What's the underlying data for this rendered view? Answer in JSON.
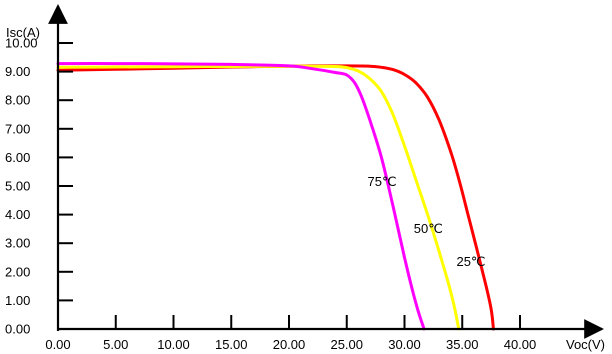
{
  "chart_data": {
    "type": "line",
    "xlabel": "Voc(V)",
    "ylabel": "Isc(A)",
    "xlim": [
      0,
      45
    ],
    "ylim": [
      0,
      10.5
    ],
    "x_ticks": [
      0,
      5,
      10,
      15,
      20,
      25,
      30,
      35,
      40
    ],
    "x_tick_labels": [
      "0.00",
      "5.00",
      "10.00",
      "15.00",
      "20.00",
      "25.00",
      "30.00",
      "35.00",
      "40.00"
    ],
    "y_ticks": [
      0,
      1,
      2,
      3,
      4,
      5,
      6,
      7,
      8,
      9,
      10
    ],
    "y_tick_labels": [
      "0.00",
      "1.00",
      "2.00",
      "3.00",
      "4.00",
      "5.00",
      "6.00",
      "7.00",
      "8.00",
      "9.00",
      "10.00"
    ],
    "grid": false,
    "legend": "none",
    "series": [
      {
        "name": "25℃",
        "color": "#ff0000",
        "x": [
          0,
          5,
          10,
          15,
          20,
          22,
          25,
          27,
          28,
          29,
          30,
          31,
          32,
          33,
          34,
          34.8,
          35.5,
          36.2,
          37,
          37.5,
          37.7
        ],
        "y": [
          9.05,
          9.08,
          9.12,
          9.16,
          9.19,
          9.2,
          9.2,
          9.19,
          9.15,
          9.07,
          8.9,
          8.6,
          8.1,
          7.3,
          6.2,
          5.1,
          4.0,
          2.9,
          1.6,
          0.7,
          0
        ]
      },
      {
        "name": "50℃",
        "color": "#ffff00",
        "x": [
          0,
          5,
          10,
          15,
          20,
          22,
          24,
          25,
          26,
          27,
          28,
          29,
          30,
          31,
          32,
          33,
          33.8,
          34.3,
          34.7
        ],
        "y": [
          9.15,
          9.16,
          9.17,
          9.18,
          9.19,
          9.19,
          9.18,
          9.14,
          9.02,
          8.75,
          8.3,
          7.5,
          6.4,
          5.2,
          4.0,
          2.7,
          1.6,
          0.8,
          0
        ]
      },
      {
        "name": "75℃",
        "color": "#ff00ff",
        "x": [
          0,
          5,
          10,
          15,
          20,
          22,
          24,
          25,
          25.7,
          26.3,
          27,
          28,
          29,
          30,
          30.6,
          31.2,
          31.7
        ],
        "y": [
          9.28,
          9.28,
          9.27,
          9.25,
          9.2,
          9.1,
          8.97,
          8.88,
          8.6,
          8.1,
          7.3,
          6.0,
          4.3,
          2.5,
          1.5,
          0.6,
          0
        ]
      }
    ],
    "annotations": [
      {
        "text": "75℃",
        "x": 26.8,
        "y": 5.0
      },
      {
        "text": "50℃",
        "x": 30.8,
        "y": 3.35
      },
      {
        "text": "25℃",
        "x": 34.5,
        "y": 2.2
      }
    ]
  }
}
